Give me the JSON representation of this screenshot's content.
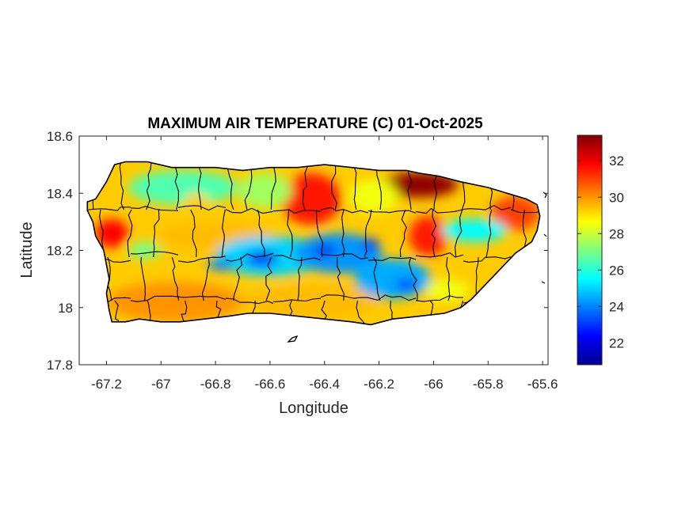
{
  "figure": {
    "title": "MAXIMUM AIR TEMPERATURE (C) 01-Oct-2025",
    "xlabel": "Longitude",
    "ylabel": "Latitude"
  },
  "chart_data": {
    "type": "heatmap",
    "title": "MAXIMUM AIR TEMPERATURE (C) 01-Oct-2025",
    "xlabel": "Longitude",
    "ylabel": "Latitude",
    "xlim": [
      -67.3,
      -65.58
    ],
    "ylim": [
      17.8,
      18.6
    ],
    "xticks": [
      -67.2,
      -67,
      -66.8,
      -66.6,
      -66.4,
      -66.2,
      -66,
      -65.8,
      -65.6
    ],
    "xtick_labels": [
      "-67.2",
      "-67",
      "-66.8",
      "-66.6",
      "-66.4",
      "-66.2",
      "-66",
      "-65.8",
      "-65.6"
    ],
    "yticks": [
      17.8,
      18,
      18.2,
      18.4,
      18.6
    ],
    "ytick_labels": [
      "17.8",
      "18",
      "18.2",
      "18.4",
      "18.6"
    ],
    "colorbar": {
      "colormap": "jet",
      "range": [
        20.8,
        33.4
      ],
      "ticks": [
        22,
        24,
        26,
        28,
        30,
        32
      ],
      "tick_labels": [
        "22",
        "24",
        "26",
        "28",
        "30",
        "32"
      ],
      "placement": "right"
    },
    "grid": false,
    "island_outline": [
      [
        -67.27,
        18.37
      ],
      [
        -67.24,
        18.38
      ],
      [
        -67.2,
        18.44
      ],
      [
        -67.17,
        18.5
      ],
      [
        -67.13,
        18.51
      ],
      [
        -67.05,
        18.51
      ],
      [
        -66.96,
        18.49
      ],
      [
        -66.9,
        18.49
      ],
      [
        -66.8,
        18.49
      ],
      [
        -66.7,
        18.48
      ],
      [
        -66.6,
        18.49
      ],
      [
        -66.5,
        18.49
      ],
      [
        -66.4,
        18.5
      ],
      [
        -66.3,
        18.49
      ],
      [
        -66.2,
        18.48
      ],
      [
        -66.1,
        18.48
      ],
      [
        -66.05,
        18.47
      ],
      [
        -65.98,
        18.46
      ],
      [
        -65.9,
        18.44
      ],
      [
        -65.8,
        18.42
      ],
      [
        -65.73,
        18.4
      ],
      [
        -65.66,
        18.38
      ],
      [
        -65.62,
        18.36
      ],
      [
        -65.61,
        18.32
      ],
      [
        -65.62,
        18.27
      ],
      [
        -65.64,
        18.23
      ],
      [
        -65.7,
        18.19
      ],
      [
        -65.75,
        18.14
      ],
      [
        -65.8,
        18.09
      ],
      [
        -65.86,
        18.03
      ],
      [
        -65.9,
        18.0
      ],
      [
        -65.96,
        17.98
      ],
      [
        -66.05,
        17.97
      ],
      [
        -66.15,
        17.96
      ],
      [
        -66.23,
        17.94
      ],
      [
        -66.3,
        17.95
      ],
      [
        -66.4,
        17.96
      ],
      [
        -66.5,
        17.97
      ],
      [
        -66.6,
        17.98
      ],
      [
        -66.68,
        17.98
      ],
      [
        -66.75,
        17.97
      ],
      [
        -66.84,
        17.96
      ],
      [
        -66.93,
        17.95
      ],
      [
        -67.0,
        17.95
      ],
      [
        -67.08,
        17.96
      ],
      [
        -67.13,
        17.95
      ],
      [
        -67.18,
        17.95
      ],
      [
        -67.19,
        17.99
      ],
      [
        -67.2,
        18.05
      ],
      [
        -67.19,
        18.1
      ],
      [
        -67.2,
        18.15
      ],
      [
        -67.21,
        18.2
      ],
      [
        -67.24,
        18.25
      ],
      [
        -67.25,
        18.3
      ],
      [
        -67.27,
        18.34
      ]
    ],
    "temperature_regions": [
      {
        "lon": -66.05,
        "lat": 18.43,
        "rx": 0.14,
        "ry": 0.045,
        "value": 33.2
      },
      {
        "lon": -66.45,
        "lat": 18.38,
        "rx": 0.11,
        "ry": 0.09,
        "value": 31.6
      },
      {
        "lon": -66.02,
        "lat": 18.25,
        "rx": 0.07,
        "ry": 0.07,
        "value": 31.5
      },
      {
        "lon": -65.7,
        "lat": 18.33,
        "rx": 0.09,
        "ry": 0.06,
        "value": 31.0
      },
      {
        "lon": -67.18,
        "lat": 18.26,
        "rx": 0.06,
        "ry": 0.05,
        "value": 31.8
      },
      {
        "lon": -66.8,
        "lat": 18.25,
        "rx": 0.22,
        "ry": 0.05,
        "value": 29.5
      },
      {
        "lon": -66.95,
        "lat": 18.02,
        "rx": 0.25,
        "ry": 0.07,
        "value": 30.0
      },
      {
        "lon": -66.45,
        "lat": 18.02,
        "rx": 0.25,
        "ry": 0.06,
        "value": 29.5
      },
      {
        "lon": -66.92,
        "lat": 18.42,
        "rx": 0.2,
        "ry": 0.06,
        "value": 26.5
      },
      {
        "lon": -66.62,
        "lat": 18.41,
        "rx": 0.1,
        "ry": 0.06,
        "value": 27.5
      },
      {
        "lon": -66.22,
        "lat": 18.39,
        "rx": 0.09,
        "ry": 0.06,
        "value": 28.5
      },
      {
        "lon": -66.6,
        "lat": 18.18,
        "rx": 0.2,
        "ry": 0.07,
        "value": 25.0
      },
      {
        "lon": -66.35,
        "lat": 18.19,
        "rx": 0.16,
        "ry": 0.07,
        "value": 24.2
      },
      {
        "lon": -66.15,
        "lat": 18.1,
        "rx": 0.14,
        "ry": 0.07,
        "value": 24.5
      },
      {
        "lon": -65.85,
        "lat": 18.27,
        "rx": 0.12,
        "ry": 0.04,
        "value": 25.5
      },
      {
        "lon": -66.63,
        "lat": 18.17,
        "rx": 0.06,
        "ry": 0.025,
        "value": 22.6
      },
      {
        "lon": -66.4,
        "lat": 18.2,
        "rx": 0.04,
        "ry": 0.02,
        "value": 22.2
      },
      {
        "lon": -66.23,
        "lat": 18.22,
        "rx": 0.03,
        "ry": 0.02,
        "value": 22.8
      },
      {
        "lon": -66.1,
        "lat": 18.08,
        "rx": 0.04,
        "ry": 0.02,
        "value": 23.0
      },
      {
        "lon": -66.78,
        "lat": 18.15,
        "rx": 0.05,
        "ry": 0.02,
        "value": 24.0
      },
      {
        "lon": -67.06,
        "lat": 18.2,
        "rx": 0.06,
        "ry": 0.03,
        "value": 27.0
      },
      {
        "lon": -65.95,
        "lat": 18.06,
        "rx": 0.08,
        "ry": 0.04,
        "value": 28.5
      },
      {
        "lon": -66.87,
        "lat": 18.36,
        "rx": 0.05,
        "ry": 0.04,
        "value": 29.3
      }
    ]
  }
}
